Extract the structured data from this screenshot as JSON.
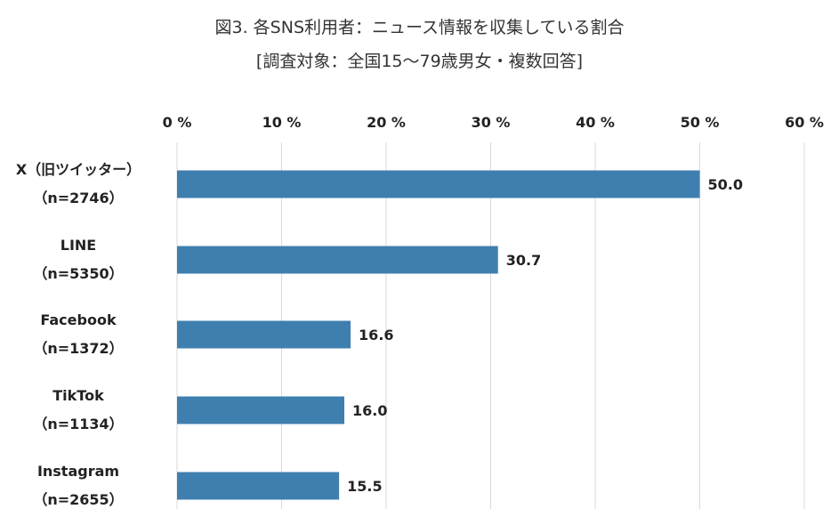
{
  "chart_data": {
    "type": "bar",
    "orientation": "horizontal",
    "title": "図3. 各SNS利用者：ニュース情報を収集している割合",
    "subtitle": "[調査対象：全国15～79歳男女・複数回答]",
    "categories": [
      {
        "name": "X（旧ツイッター）",
        "n": "（n=2746）"
      },
      {
        "name": "LINE",
        "n": "（n=5350）"
      },
      {
        "name": "Facebook",
        "n": "（n=1372）"
      },
      {
        "name": "TikTok",
        "n": "（n=1134）"
      },
      {
        "name": "Instagram",
        "n": "（n=2655）"
      }
    ],
    "values": [
      50.0,
      30.7,
      16.6,
      16.0,
      15.5
    ],
    "value_labels": [
      "50.0",
      "30.7",
      "16.6",
      "16.0",
      "15.5"
    ],
    "xlim": [
      0,
      60
    ],
    "ticks": [
      0,
      10,
      20,
      30,
      40,
      50,
      60
    ],
    "tick_labels": [
      "0 %",
      "10 %",
      "20 %",
      "30 %",
      "40 %",
      "50 %",
      "60 %"
    ],
    "bar_color": "#3f7fb0",
    "grid": true
  }
}
